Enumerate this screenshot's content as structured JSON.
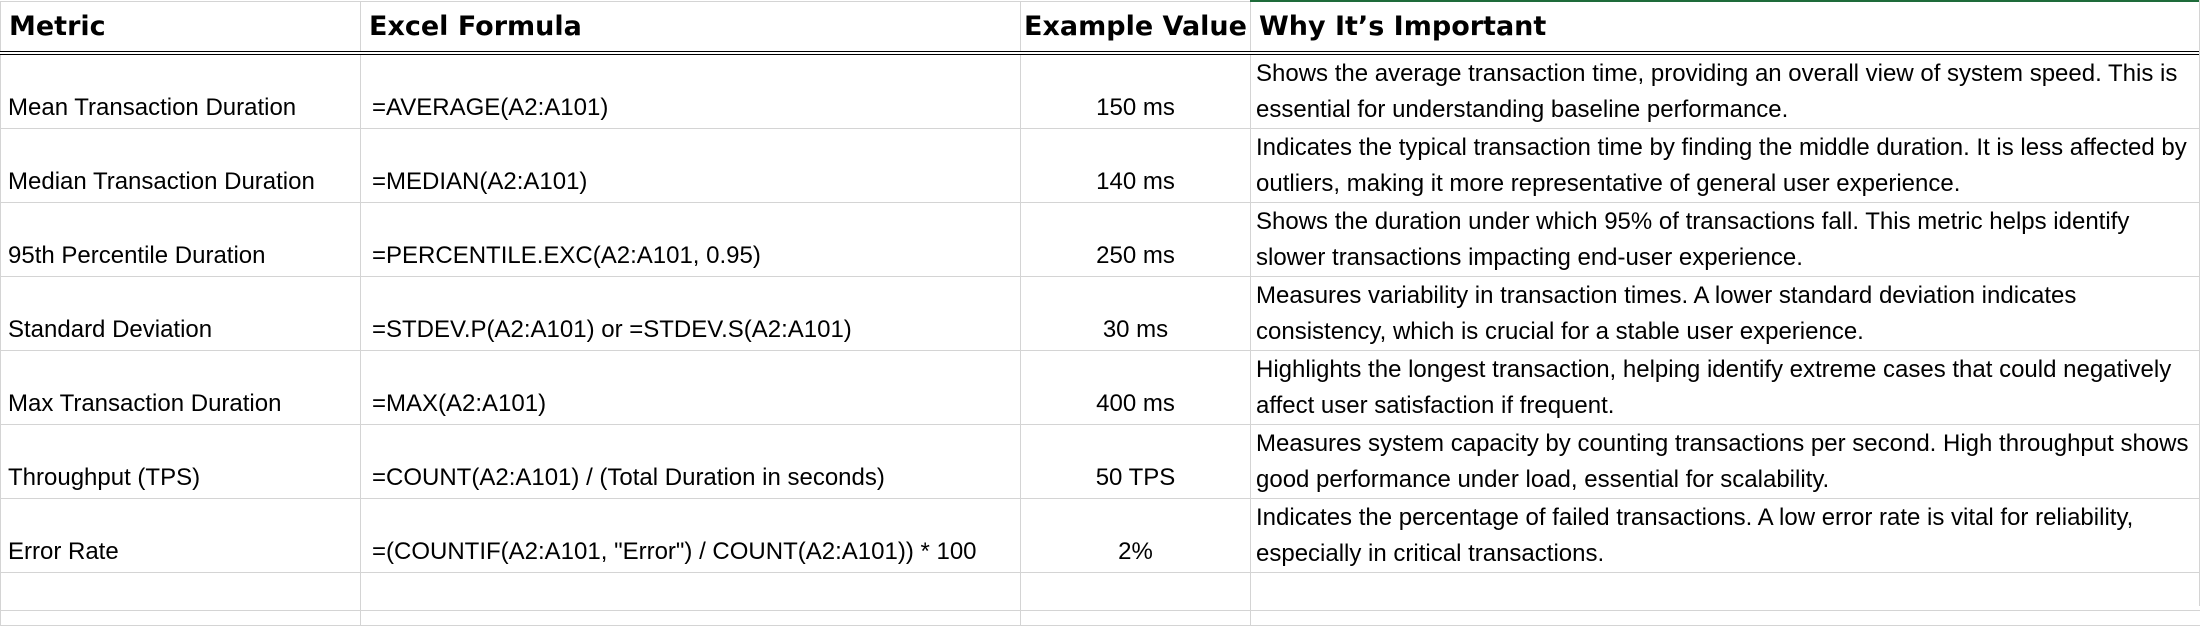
{
  "headers": {
    "metric": "Metric",
    "formula": "Excel Formula",
    "value": "Example Value",
    "why": "Why It’s Important"
  },
  "rows": [
    {
      "metric": "Mean Transaction Duration",
      "formula": "=AVERAGE(A2:A101)",
      "value": "150 ms",
      "why": "Shows the average transaction time, providing an overall view of system speed. This is essential for understanding baseline performance."
    },
    {
      "metric": "Median Transaction Duration",
      "formula": "=MEDIAN(A2:A101)",
      "value": "140 ms",
      "why": "Indicates the typical transaction time by finding the middle duration. It is less affected by outliers, making it more representative of general user experience."
    },
    {
      "metric": "95th Percentile Duration",
      "formula": "=PERCENTILE.EXC(A2:A101, 0.95)",
      "value": "250 ms",
      "why": "Shows the duration under which 95% of transactions fall. This metric helps identify slower transactions impacting end-user experience."
    },
    {
      "metric": "Standard Deviation",
      "formula": "=STDEV.P(A2:A101) or =STDEV.S(A2:A101)",
      "value": "30 ms",
      "why": "Measures variability in transaction times. A lower standard deviation indicates consistency, which is crucial for a stable user experience."
    },
    {
      "metric": "Max Transaction Duration",
      "formula": "=MAX(A2:A101)",
      "value": "400 ms",
      "why": "Highlights the longest transaction, helping identify extreme cases that could negatively affect user satisfaction if frequent."
    },
    {
      "metric": "Throughput (TPS)",
      "formula": "=COUNT(A2:A101) / (Total Duration in seconds)",
      "value": "50 TPS",
      "why": "Measures system capacity by counting transactions per second. High throughput shows good performance under load, essential for scalability."
    },
    {
      "metric": "Error Rate",
      "formula": "=(COUNTIF(A2:A101, \"Error\") / COUNT(A2:A101)) * 100",
      "value": "2%",
      "why": "Indicates the percentage of failed transactions. A low error rate is vital for reliability, especially in critical transactions."
    }
  ]
}
